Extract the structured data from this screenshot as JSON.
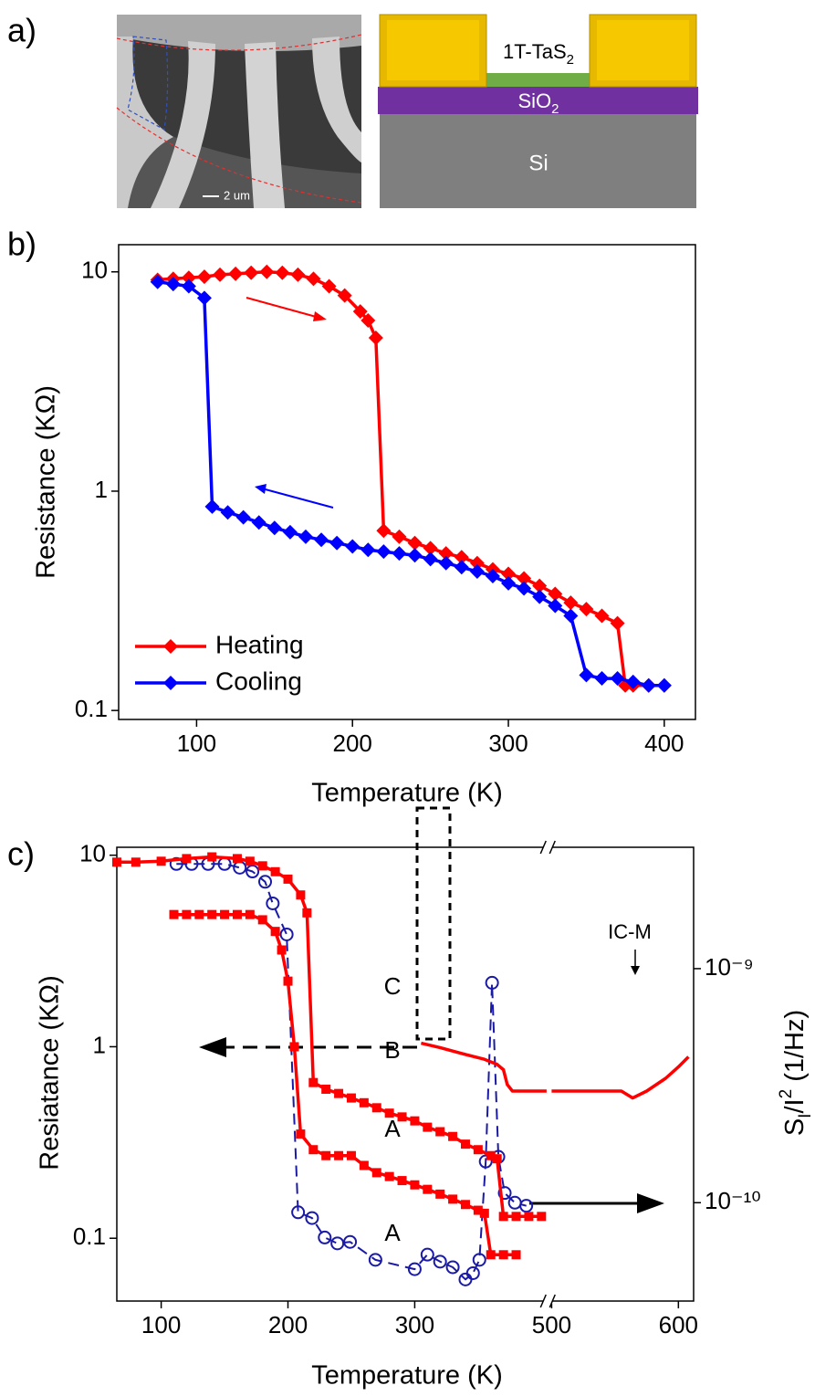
{
  "panel_labels": [
    "a)",
    "b)",
    "c)"
  ],
  "schematic": {
    "scale_bar": "2 um",
    "channel": [
      "1T-TaS",
      "2"
    ],
    "oxide": [
      "SiO",
      "2"
    ],
    "substrate": "Si"
  },
  "chart_data": [
    {
      "type": "line",
      "xlabel": "Temperature (K)",
      "ylabel": "Resistance (KΩ)",
      "xlim": [
        50,
        420
      ],
      "ylim": [
        0.091,
        13.3
      ],
      "log_y": true,
      "xticks": [
        100,
        200,
        300,
        400
      ],
      "yticks": [
        0.1,
        1,
        10
      ],
      "legend": "lower left",
      "series": [
        {
          "name": "Heating",
          "color": "#ff0000",
          "marker": "diamond",
          "x": [
            75,
            85,
            95,
            105,
            115,
            125,
            135,
            145,
            155,
            165,
            175,
            185,
            195,
            205,
            210,
            215,
            220,
            230,
            240,
            250,
            260,
            270,
            280,
            290,
            300,
            310,
            320,
            330,
            340,
            350,
            360,
            370,
            375,
            380,
            390,
            400
          ],
          "values": [
            9.2,
            9.3,
            9.4,
            9.5,
            9.7,
            9.8,
            9.9,
            10,
            9.9,
            9.7,
            9.3,
            8.6,
            7.8,
            6.6,
            6.0,
            5.0,
            0.66,
            0.62,
            0.58,
            0.55,
            0.52,
            0.5,
            0.47,
            0.44,
            0.42,
            0.4,
            0.37,
            0.34,
            0.31,
            0.29,
            0.27,
            0.25,
            0.13,
            0.13,
            0.13,
            0.13
          ]
        },
        {
          "name": "Cooling",
          "color": "#0000ff",
          "marker": "diamond",
          "x": [
            75,
            85,
            95,
            105,
            110,
            120,
            130,
            140,
            150,
            160,
            170,
            180,
            190,
            200,
            210,
            220,
            230,
            240,
            250,
            260,
            270,
            280,
            290,
            300,
            310,
            320,
            330,
            340,
            350,
            360,
            370,
            380,
            390,
            400
          ],
          "values": [
            9.0,
            8.8,
            8.6,
            7.6,
            0.85,
            0.8,
            0.76,
            0.72,
            0.68,
            0.65,
            0.62,
            0.6,
            0.58,
            0.56,
            0.54,
            0.53,
            0.52,
            0.51,
            0.49,
            0.47,
            0.45,
            0.43,
            0.41,
            0.38,
            0.36,
            0.33,
            0.3,
            0.27,
            0.145,
            0.14,
            0.14,
            0.135,
            0.13,
            0.13
          ]
        }
      ]
    },
    {
      "type": "line",
      "xlabel": "Temperature (K)",
      "ylabel": "Resiatance (KΩ)",
      "y2label": [
        "S",
        "I",
        "/I",
        "2",
        " (1/Hz)"
      ],
      "xlim": [
        65,
        612
      ],
      "xbreak": [
        405,
        497
      ],
      "ylim": [
        0.047,
        11
      ],
      "y2lim": [
        3.8e-11,
        3.3e-09
      ],
      "log_y": true,
      "log_y2": true,
      "xticks": [
        100,
        200,
        300,
        500,
        600
      ],
      "yticks": [
        0.1,
        1,
        10
      ],
      "y2ticks": [
        {
          "value": 1e-10,
          "label": "10⁻¹⁰"
        },
        {
          "value": 1e-09,
          "label": "10⁻⁹"
        }
      ],
      "annotations": [
        "C",
        "B",
        "A",
        "A",
        "IC-M"
      ],
      "series": [
        {
          "color": "#1a1aa6",
          "marker": "circle",
          "dash": true,
          "axis": "y2",
          "x": [
            112,
            124,
            137,
            150,
            162,
            172,
            182,
            188,
            199,
            208,
            219,
            229,
            239,
            249,
            269,
            300,
            310,
            320,
            330,
            340,
            346,
            351,
            356,
            361,
            366,
            371,
            379,
            388
          ],
          "values": [
            2.8e-09,
            2.8e-09,
            2.8e-09,
            2.8e-09,
            2.7e-09,
            2.6e-09,
            2.35e-09,
            1.9e-09,
            1.4e-09,
            9.1e-11,
            8.6e-11,
            7.1e-11,
            6.7e-11,
            6.8e-11,
            5.7e-11,
            5.2e-11,
            6e-11,
            5.6e-11,
            5.3e-11,
            4.7e-11,
            5e-11,
            5.7e-11,
            1.5e-10,
            8.7e-10,
            1.57e-10,
            1.1e-10,
            1e-10,
            9.7e-11
          ]
        },
        {
          "color": "#ff0000",
          "marker": "square",
          "x": [
            65,
            80,
            100,
            120,
            140,
            160,
            170,
            180,
            190,
            200,
            210,
            215,
            220,
            230,
            240,
            250,
            260,
            270,
            280,
            290,
            300,
            310,
            320,
            330,
            340,
            350,
            360,
            365,
            370,
            380,
            390,
            400
          ],
          "values": [
            9.2,
            9.2,
            9.3,
            9.6,
            9.8,
            9.6,
            9.3,
            8.8,
            8.2,
            7.5,
            6.2,
            5.0,
            0.65,
            0.6,
            0.57,
            0.54,
            0.51,
            0.48,
            0.45,
            0.43,
            0.41,
            0.38,
            0.36,
            0.34,
            0.31,
            0.29,
            0.27,
            0.26,
            0.13,
            0.13,
            0.13,
            0.13
          ]
        },
        {
          "color": "#ff0000",
          "marker": "square",
          "x": [
            110,
            120,
            130,
            140,
            150,
            160,
            170,
            180,
            190,
            195,
            200,
            205,
            210,
            220,
            230,
            240,
            250,
            260,
            270,
            280,
            290,
            300,
            310,
            320,
            330,
            340,
            350,
            355,
            360,
            370,
            380
          ],
          "values": [
            4.9,
            4.9,
            4.9,
            4.9,
            4.9,
            4.9,
            4.9,
            4.6,
            4.0,
            3.2,
            2.2,
            1.0,
            0.35,
            0.29,
            0.27,
            0.27,
            0.27,
            0.24,
            0.22,
            0.21,
            0.2,
            0.19,
            0.18,
            0.17,
            0.16,
            0.15,
            0.14,
            0.135,
            0.082,
            0.082,
            0.082
          ]
        },
        {
          "color": "#ff0000",
          "axis": "y2",
          "x": [
            305,
            320,
            340,
            355,
            365,
            370,
            373,
            377,
            390,
            404,
            450,
            500,
            520,
            540,
            555,
            564,
            575,
            590,
            600,
            608
          ],
          "values": [
            4.8e-10,
            4.6e-10,
            4.3e-10,
            4.1e-10,
            3.9e-10,
            3.7e-10,
            3.2e-10,
            3e-10,
            3e-10,
            3e-10,
            null,
            3e-10,
            3e-10,
            3e-10,
            3e-10,
            2.8e-10,
            3e-10,
            3.4e-10,
            3.8e-10,
            4.2e-10
          ]
        }
      ]
    }
  ]
}
